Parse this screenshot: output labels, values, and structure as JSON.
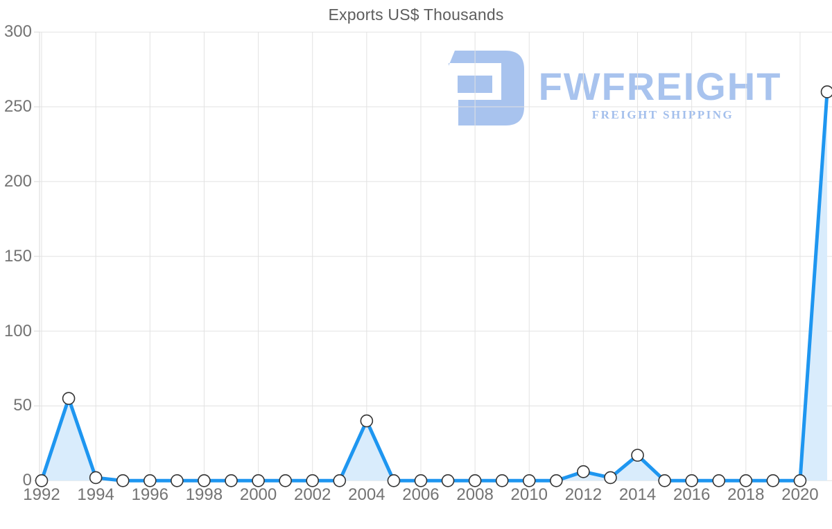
{
  "chart_data": {
    "type": "line",
    "title": "Exports US$ Thousands",
    "x": [
      1992,
      1993,
      1994,
      1995,
      1996,
      1997,
      1998,
      1999,
      2000,
      2001,
      2002,
      2003,
      2004,
      2005,
      2006,
      2007,
      2008,
      2009,
      2010,
      2011,
      2012,
      2013,
      2014,
      2015,
      2016,
      2017,
      2018,
      2019,
      2020,
      2021
    ],
    "series": [
      {
        "name": "Exports US$ Thousands",
        "values": [
          0,
          55,
          2,
          0,
          0,
          0,
          0,
          0,
          0,
          0,
          0,
          0,
          40,
          0,
          0,
          0,
          0,
          0,
          0,
          0,
          6,
          2,
          17,
          0,
          0,
          0,
          0,
          0,
          0,
          260
        ]
      }
    ],
    "xticks": [
      1992,
      1994,
      1996,
      1998,
      2000,
      2002,
      2004,
      2006,
      2008,
      2010,
      2012,
      2014,
      2016,
      2018,
      2020
    ],
    "yticks": [
      0,
      50,
      100,
      150,
      200,
      250,
      300
    ],
    "ylim": [
      0,
      300
    ],
    "xlabel": "",
    "ylabel": "",
    "grid": true,
    "legend": "none",
    "marker": "circle"
  },
  "watermark": {
    "brand": "FWFREIGHT",
    "tagline": "FREIGHT SHIPPING"
  },
  "colors": {
    "line": "#1e96f0",
    "area_fill": "#d9ecfc",
    "marker_fill": "#ffffff",
    "marker_stroke": "#333333",
    "grid": "#e2e2e2",
    "axis": "#d9d9d9",
    "tick_text": "#737373",
    "title_text": "#5d5d5d",
    "watermark": "#a8c3ee"
  }
}
